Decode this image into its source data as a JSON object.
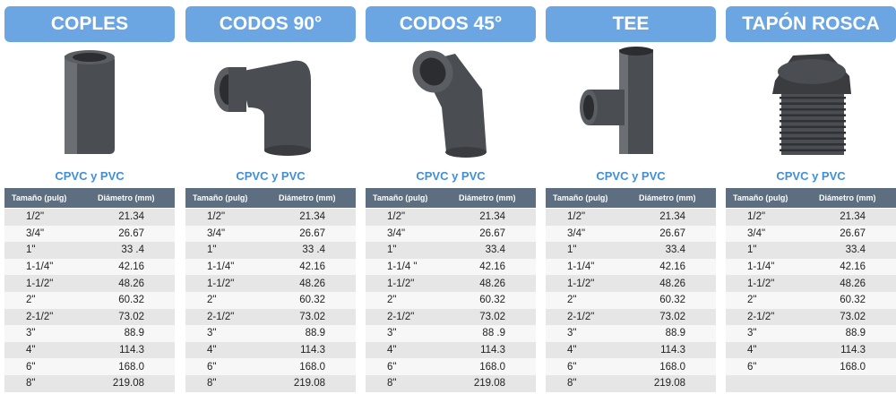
{
  "panels": [
    {
      "title": "COPLES",
      "subtitle": "CPVC y PVC",
      "headers": [
        "Tamaño (pulg)",
        "Diámetro (mm)"
      ],
      "rows": [
        [
          "1/2\"",
          "21.34"
        ],
        [
          "3/4\"",
          "26.67"
        ],
        [
          "1\"",
          "33 .4"
        ],
        [
          "1-1/4\"",
          "42.16"
        ],
        [
          "1-1/2\"",
          "48.26"
        ],
        [
          "2\"",
          "60.32"
        ],
        [
          "2-1/2\"",
          "73.02"
        ],
        [
          "3\"",
          "88.9"
        ],
        [
          "4\"",
          "114.3"
        ],
        [
          "6\"",
          "168.0"
        ],
        [
          "8\"",
          "219.08"
        ]
      ]
    },
    {
      "title": "CODOS 90°",
      "subtitle": "CPVC y PVC",
      "headers": [
        "Tamaño (pulg)",
        "Diámetro (mm)"
      ],
      "rows": [
        [
          "1/2\"",
          "21.34"
        ],
        [
          "3/4\"",
          "26.67"
        ],
        [
          "1\"",
          "33 .4"
        ],
        [
          "1-1/4\"",
          "42.16"
        ],
        [
          "1-1/2\"",
          "48.26"
        ],
        [
          "2\"",
          "60.32"
        ],
        [
          "2-1/2\"",
          "73.02"
        ],
        [
          "3\"",
          "88.9"
        ],
        [
          "4\"",
          "114.3"
        ],
        [
          "6\"",
          "168.0"
        ],
        [
          "8\"",
          "219.08"
        ]
      ]
    },
    {
      "title": "CODOS 45°",
      "subtitle": "CPVC y PVC",
      "headers": [
        "Tamaño (pulg)",
        "Diámetro (mm)"
      ],
      "rows": [
        [
          "1/2\"",
          "21.34"
        ],
        [
          "3/4\"",
          "26.67"
        ],
        [
          "1\"",
          "33.4"
        ],
        [
          "1-1/4 \"",
          "42.16"
        ],
        [
          "1-1/2\"",
          "48.26"
        ],
        [
          "2\"",
          "60.32"
        ],
        [
          "2-1/2\"",
          "73.02"
        ],
        [
          "3\"",
          "88 .9"
        ],
        [
          "4\"",
          "114.3"
        ],
        [
          "6\"",
          "168.0"
        ],
        [
          "8\"",
          "219.08"
        ]
      ]
    },
    {
      "title": "TEE",
      "subtitle": "CPVC y PVC",
      "headers": [
        "Tamaño (pulg)",
        "Diámetro (mm)"
      ],
      "rows": [
        [
          "1/2\"",
          "21.34"
        ],
        [
          "3/4\"",
          "26.67"
        ],
        [
          "1\"",
          "33.4"
        ],
        [
          "1-1/4\"",
          "42.16"
        ],
        [
          "1-1/2\"",
          "48.26"
        ],
        [
          "2\"",
          "60.32"
        ],
        [
          "2-1/2\"",
          "73.02"
        ],
        [
          "3\"",
          "88.9"
        ],
        [
          "4\"",
          "114.3"
        ],
        [
          "6\"",
          "168.0"
        ],
        [
          "8\"",
          "219.08"
        ]
      ]
    },
    {
      "title": "TAPÓN ROSCA",
      "subtitle": "CPVC y PVC",
      "headers": [
        "Tamaño (pulg)",
        "Diámetro (mm)"
      ],
      "rows": [
        [
          "1/2\"",
          "21.34"
        ],
        [
          "3/4\"",
          "26.67"
        ],
        [
          "1\"",
          "33.4"
        ],
        [
          "1-1/4\"",
          "42.16"
        ],
        [
          "1-1/2\"",
          "48.26"
        ],
        [
          "2\"",
          "60.32"
        ],
        [
          "2-1/2\"",
          "73.02"
        ],
        [
          "3\"",
          "88.9"
        ],
        [
          "4\"",
          "114.3"
        ],
        [
          "6\"",
          "168.0"
        ]
      ]
    }
  ]
}
